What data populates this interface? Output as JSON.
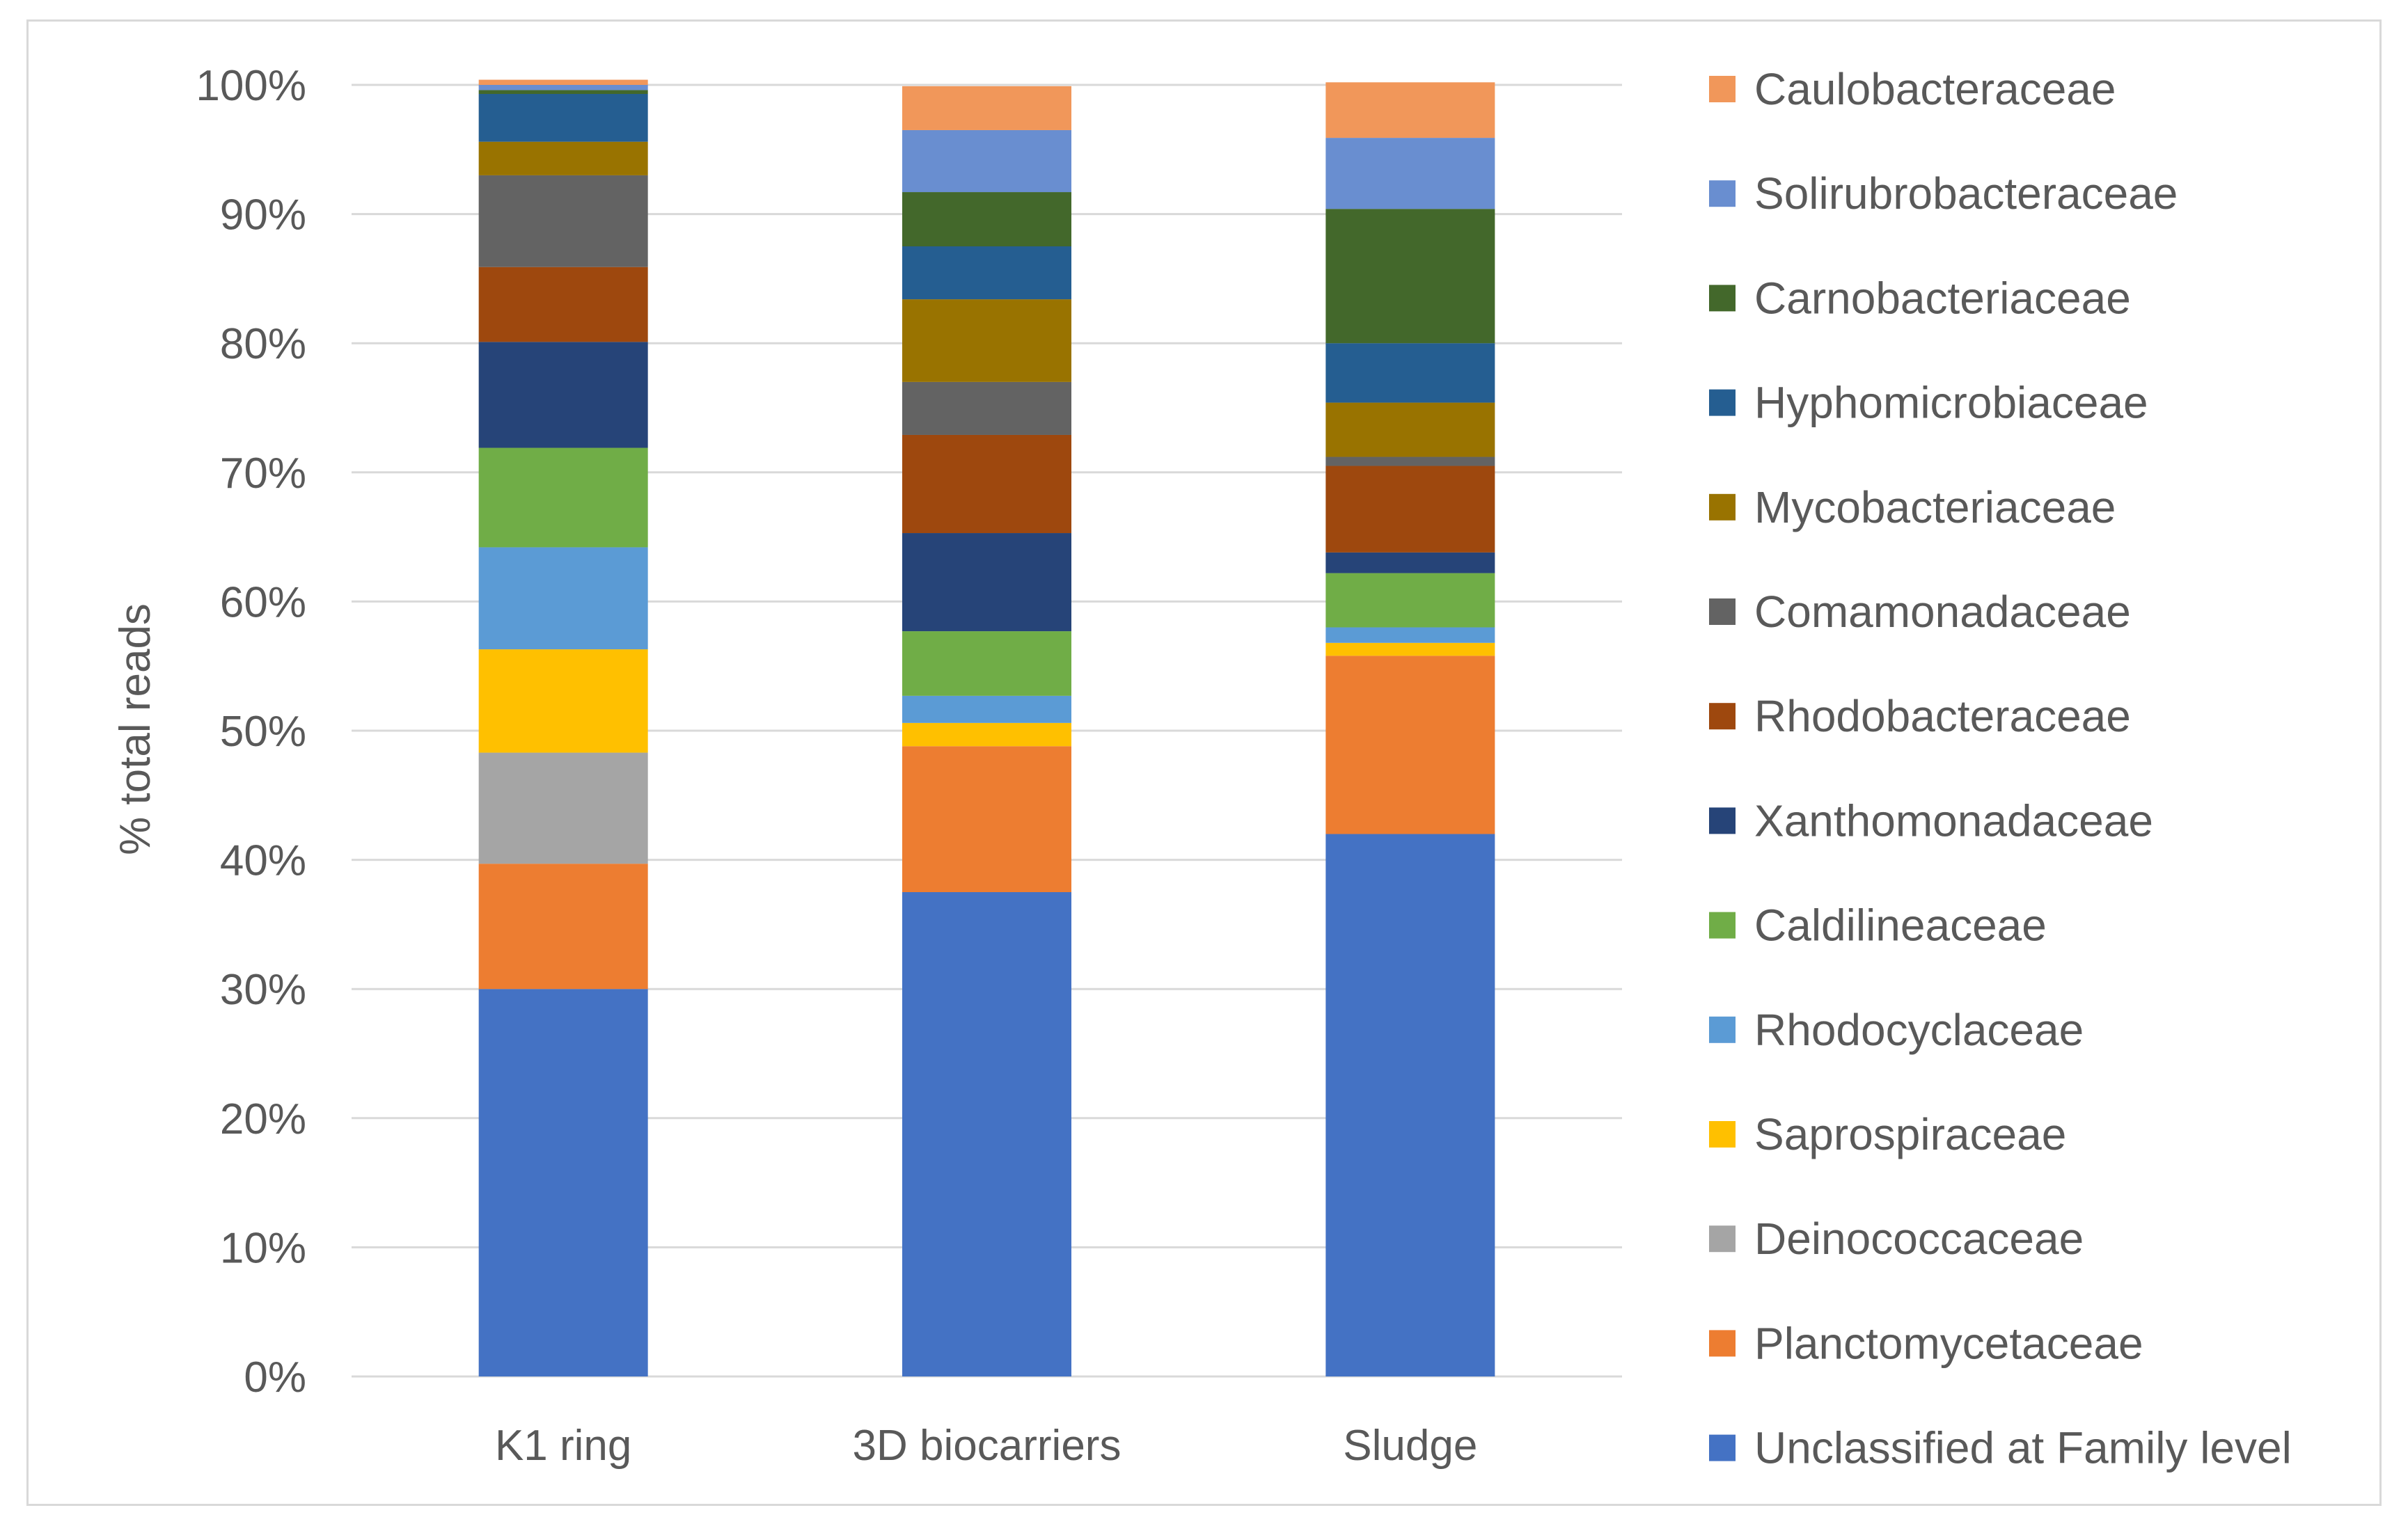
{
  "chart_data": {
    "type": "bar",
    "stacked": true,
    "title": "",
    "xlabel": "",
    "ylabel": "% total reads",
    "ylim": [
      0,
      100
    ],
    "yticks": [
      "0%",
      "10%",
      "20%",
      "30%",
      "40%",
      "50%",
      "60%",
      "70%",
      "80%",
      "90%",
      "100%"
    ],
    "categories": [
      "K1 ring",
      "3D biocarriers",
      "Sludge"
    ],
    "series": [
      {
        "name": "Unclassified at Family level",
        "color": "#4472C4",
        "values": [
          30.0,
          37.5,
          42.0
        ]
      },
      {
        "name": "Planctomycetaceae",
        "color": "#ED7D31",
        "values": [
          9.7,
          11.3,
          13.8
        ]
      },
      {
        "name": "Deinococcaceae",
        "color": "#A5A5A5",
        "values": [
          8.6,
          0.0,
          0.0
        ]
      },
      {
        "name": "Saprospiraceae",
        "color": "#FFC000",
        "values": [
          8.0,
          1.8,
          1.0
        ]
      },
      {
        "name": "Rhodocyclaceae",
        "color": "#5B9BD5",
        "values": [
          7.9,
          2.1,
          1.2
        ]
      },
      {
        "name": "Caldilineaceae",
        "color": "#70AD47",
        "values": [
          7.7,
          5.0,
          4.2
        ]
      },
      {
        "name": "Xanthomonadaceae",
        "color": "#264478",
        "values": [
          8.2,
          7.6,
          1.6
        ]
      },
      {
        "name": "Rhodobacteraceae",
        "color": "#9E480E",
        "values": [
          5.8,
          7.6,
          6.7
        ]
      },
      {
        "name": "Comamonadaceae",
        "color": "#636363",
        "values": [
          7.1,
          4.1,
          0.7
        ]
      },
      {
        "name": "Mycobacteriaceae",
        "color": "#997300",
        "values": [
          2.6,
          6.4,
          4.2
        ]
      },
      {
        "name": "Hyphomicrobiaceae",
        "color": "#255E91",
        "values": [
          3.7,
          4.1,
          4.6
        ]
      },
      {
        "name": "Carnobacteriaceae",
        "color": "#43682B",
        "values": [
          0.3,
          4.2,
          10.4
        ]
      },
      {
        "name": "Solirubrobacteraceae",
        "color": "#698ED0",
        "values": [
          0.4,
          4.8,
          5.5
        ]
      },
      {
        "name": "Caulobacteraceae",
        "color": "#F1975A",
        "values": [
          0.4,
          3.4,
          4.3
        ]
      }
    ],
    "legend": "right",
    "grid": true
  }
}
